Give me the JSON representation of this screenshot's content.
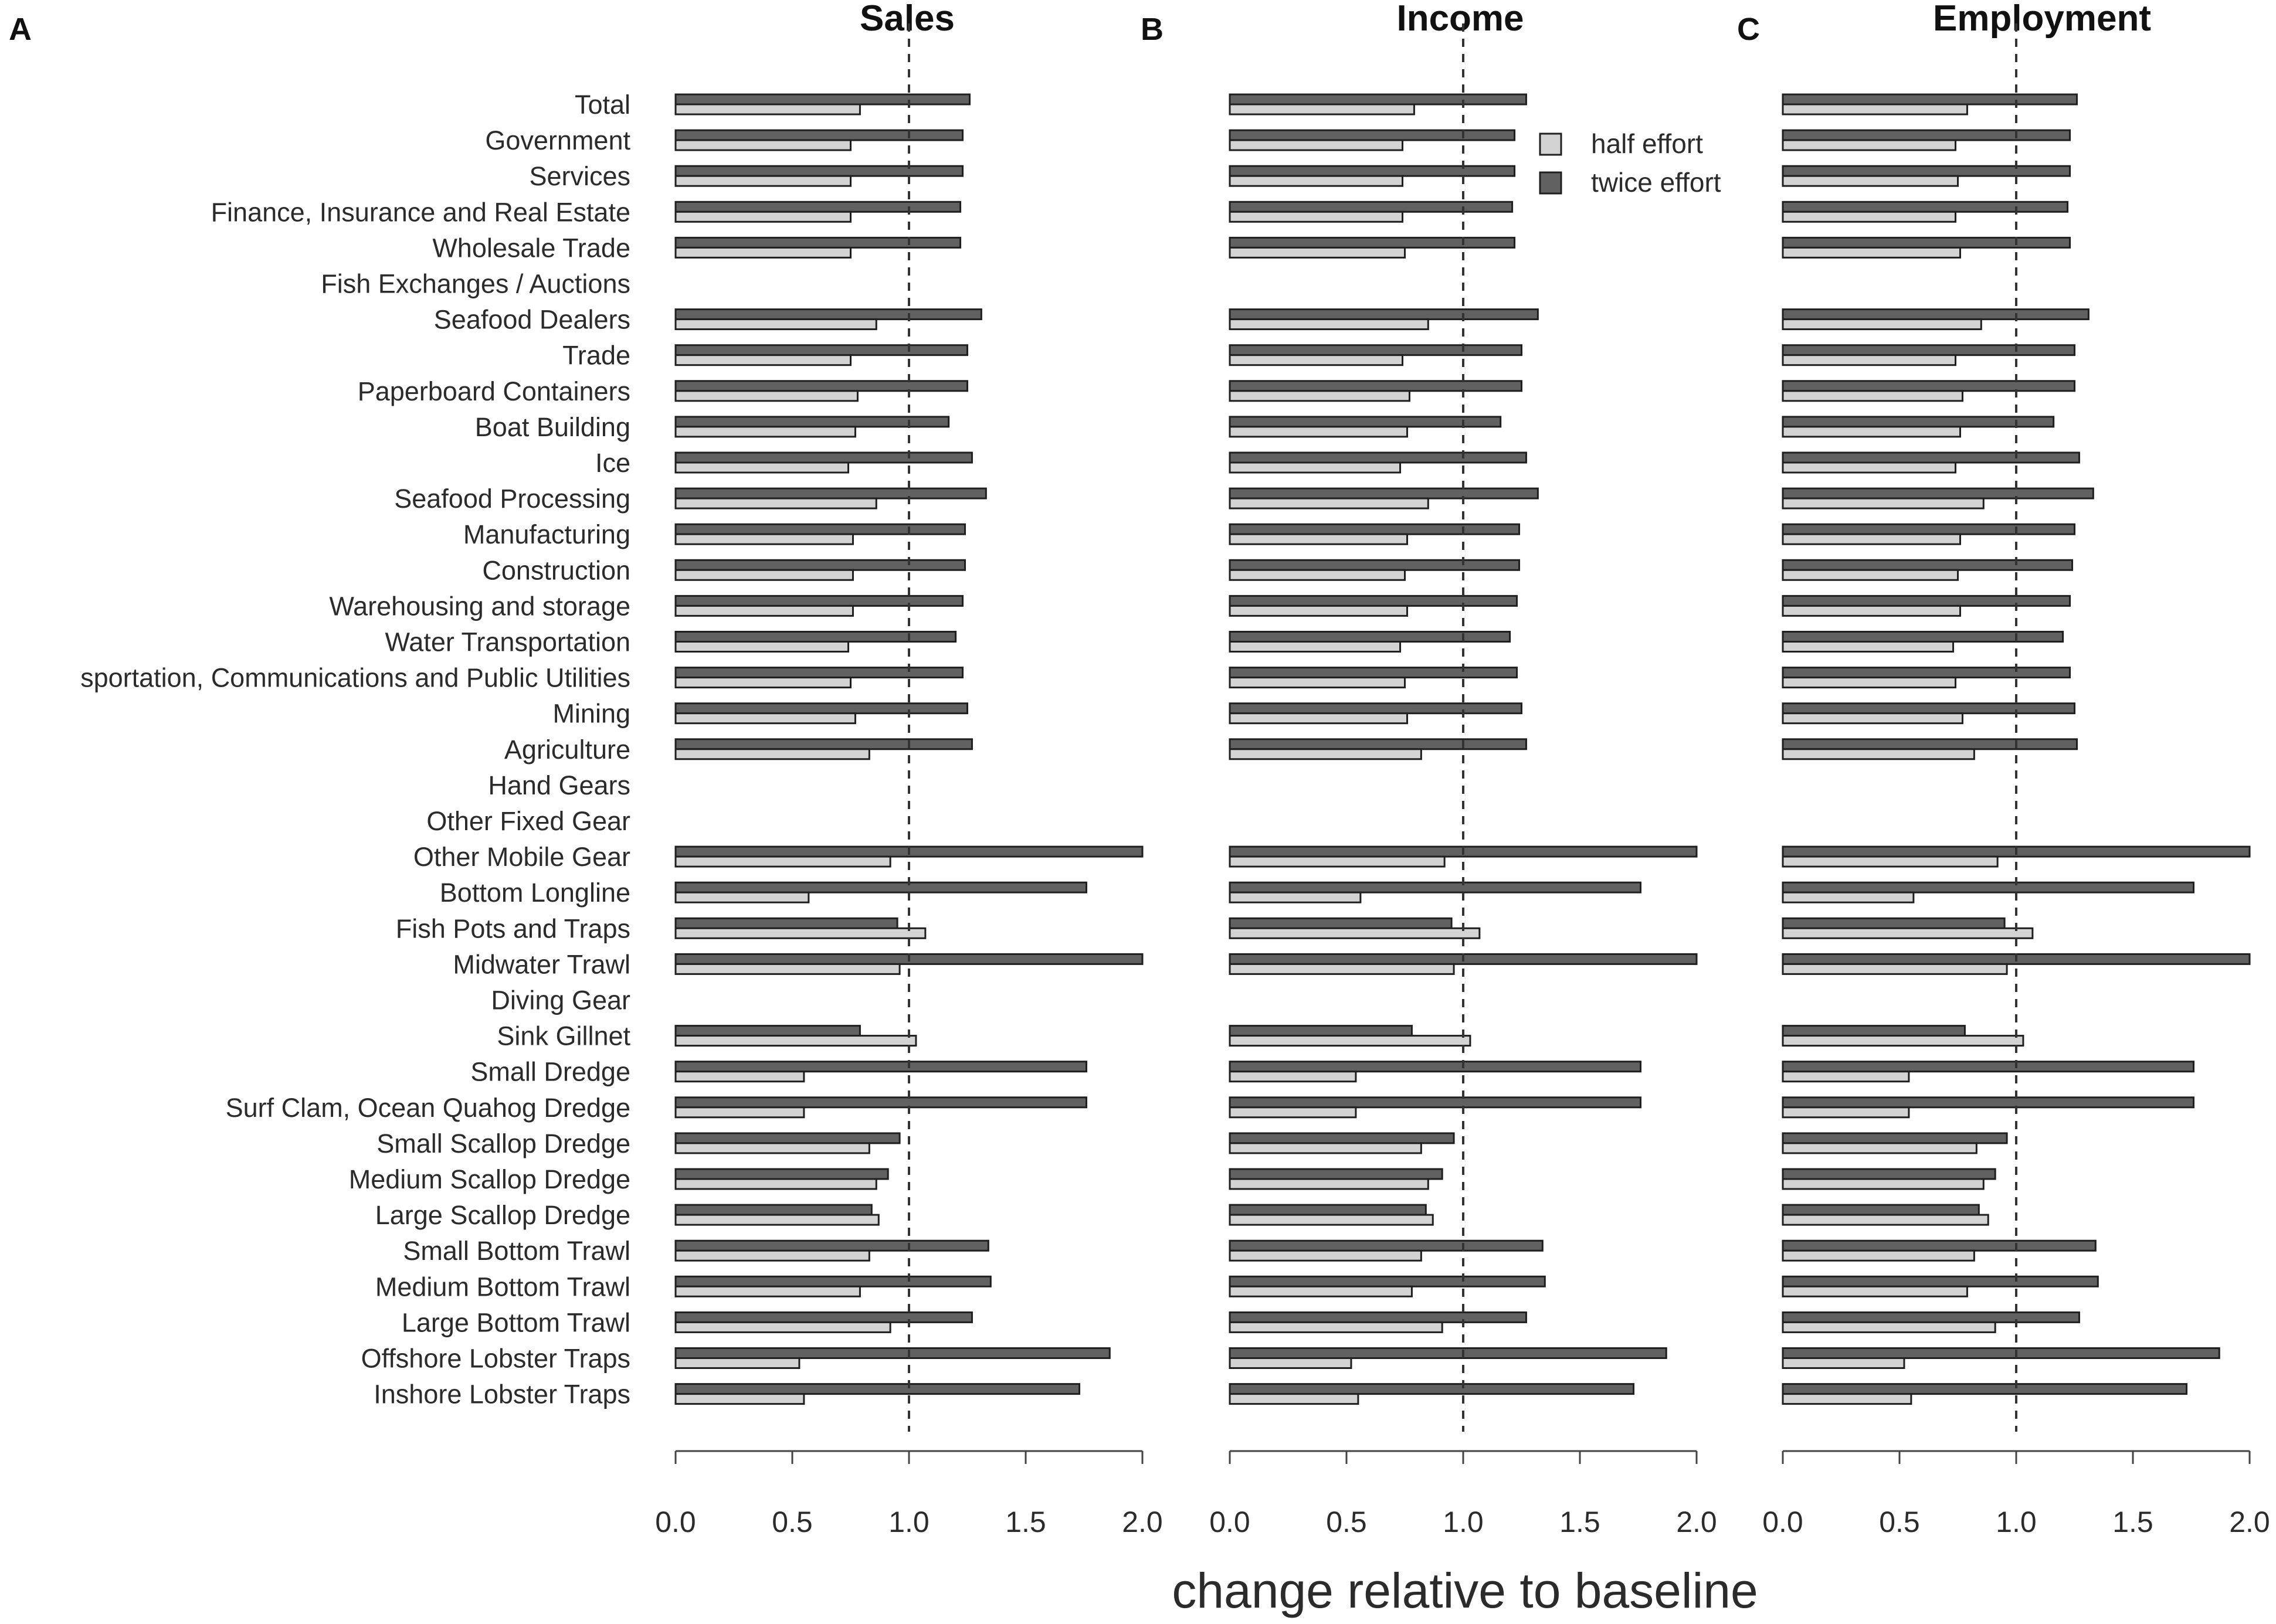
{
  "chart_data": {
    "type": "bar",
    "orientation": "horizontal",
    "xlabel": "change relative to baseline",
    "xlim": [
      0,
      2
    ],
    "xticks": [
      "0.0",
      "0.5",
      "1.0",
      "1.5",
      "2.0"
    ],
    "reference_line": 1.0,
    "legend": {
      "position": "top-right of panel B",
      "entries": [
        "half effort",
        "twice effort"
      ]
    },
    "colors": {
      "half": "#d3d3d3",
      "twice": "#616161",
      "outline": "#1f1f1f"
    },
    "categories": [
      "Total",
      "Government",
      "Services",
      "Finance, Insurance and Real Estate",
      "Wholesale Trade",
      "Fish Exchanges / Auctions",
      "Seafood Dealers",
      "Trade",
      "Paperboard Containers",
      "Boat Building",
      "Ice",
      "Seafood Processing",
      "Manufacturing",
      "Construction",
      "Warehousing and storage",
      "Water Transportation",
      "sportation, Communications and Public Utilities",
      "Mining",
      "Agriculture",
      "Hand Gears",
      "Other Fixed Gear",
      "Other Mobile Gear",
      "Bottom Longline",
      "Fish Pots and Traps",
      "Midwater Trawl",
      "Diving Gear",
      "Sink Gillnet",
      "Small Dredge",
      "Surf Clam, Ocean Quahog Dredge",
      "Small Scallop Dredge",
      "Medium Scallop Dredge",
      "Large Scallop Dredge",
      "Small Bottom Trawl",
      "Medium Bottom Trawl",
      "Large Bottom Trawl",
      "Offshore Lobster Traps",
      "Inshore Lobster Traps"
    ],
    "panels": [
      {
        "letter": "A",
        "title": "Sales",
        "series": [
          {
            "name": "half effort",
            "values": [
              0.79,
              0.75,
              0.75,
              0.75,
              0.75,
              null,
              0.86,
              0.75,
              0.78,
              0.77,
              0.74,
              0.86,
              0.76,
              0.76,
              0.76,
              0.74,
              0.75,
              0.77,
              0.83,
              null,
              null,
              0.92,
              0.57,
              1.07,
              0.96,
              null,
              1.03,
              0.55,
              0.55,
              0.83,
              0.86,
              0.87,
              0.83,
              0.79,
              0.92,
              0.53,
              0.55
            ]
          },
          {
            "name": "twice effort",
            "values": [
              1.26,
              1.23,
              1.23,
              1.22,
              1.22,
              null,
              1.31,
              1.25,
              1.25,
              1.17,
              1.27,
              1.33,
              1.24,
              1.24,
              1.23,
              1.2,
              1.23,
              1.25,
              1.27,
              null,
              null,
              2.0,
              1.76,
              0.95,
              2.0,
              null,
              0.79,
              1.76,
              1.76,
              0.96,
              0.91,
              0.84,
              1.34,
              1.35,
              1.27,
              1.86,
              1.73
            ]
          }
        ]
      },
      {
        "letter": "B",
        "title": "Income",
        "series": [
          {
            "name": "half effort",
            "values": [
              0.79,
              0.74,
              0.74,
              0.74,
              0.75,
              null,
              0.85,
              0.74,
              0.77,
              0.76,
              0.73,
              0.85,
              0.76,
              0.75,
              0.76,
              0.73,
              0.75,
              0.76,
              0.82,
              null,
              null,
              0.92,
              0.56,
              1.07,
              0.96,
              null,
              1.03,
              0.54,
              0.54,
              0.82,
              0.85,
              0.87,
              0.82,
              0.78,
              0.91,
              0.52,
              0.55
            ]
          },
          {
            "name": "twice effort",
            "values": [
              1.27,
              1.22,
              1.22,
              1.21,
              1.22,
              null,
              1.32,
              1.25,
              1.25,
              1.16,
              1.27,
              1.32,
              1.24,
              1.24,
              1.23,
              1.2,
              1.23,
              1.25,
              1.27,
              null,
              null,
              2.0,
              1.76,
              0.95,
              2.0,
              null,
              0.78,
              1.76,
              1.76,
              0.96,
              0.91,
              0.84,
              1.34,
              1.35,
              1.27,
              1.87,
              1.73
            ]
          }
        ]
      },
      {
        "letter": "C",
        "title": "Employment",
        "series": [
          {
            "name": "half effort",
            "values": [
              0.79,
              0.74,
              0.75,
              0.74,
              0.76,
              null,
              0.85,
              0.74,
              0.77,
              0.76,
              0.74,
              0.86,
              0.76,
              0.75,
              0.76,
              0.73,
              0.74,
              0.77,
              0.82,
              null,
              null,
              0.92,
              0.56,
              1.07,
              0.96,
              null,
              1.03,
              0.54,
              0.54,
              0.83,
              0.86,
              0.88,
              0.82,
              0.79,
              0.91,
              0.52,
              0.55
            ]
          },
          {
            "name": "twice effort",
            "values": [
              1.26,
              1.23,
              1.23,
              1.22,
              1.23,
              null,
              1.31,
              1.25,
              1.25,
              1.16,
              1.27,
              1.33,
              1.25,
              1.24,
              1.23,
              1.2,
              1.23,
              1.25,
              1.26,
              null,
              null,
              2.0,
              1.76,
              0.95,
              2.0,
              null,
              0.78,
              1.76,
              1.76,
              0.96,
              0.91,
              0.84,
              1.34,
              1.35,
              1.27,
              1.87,
              1.73
            ]
          }
        ]
      }
    ]
  }
}
